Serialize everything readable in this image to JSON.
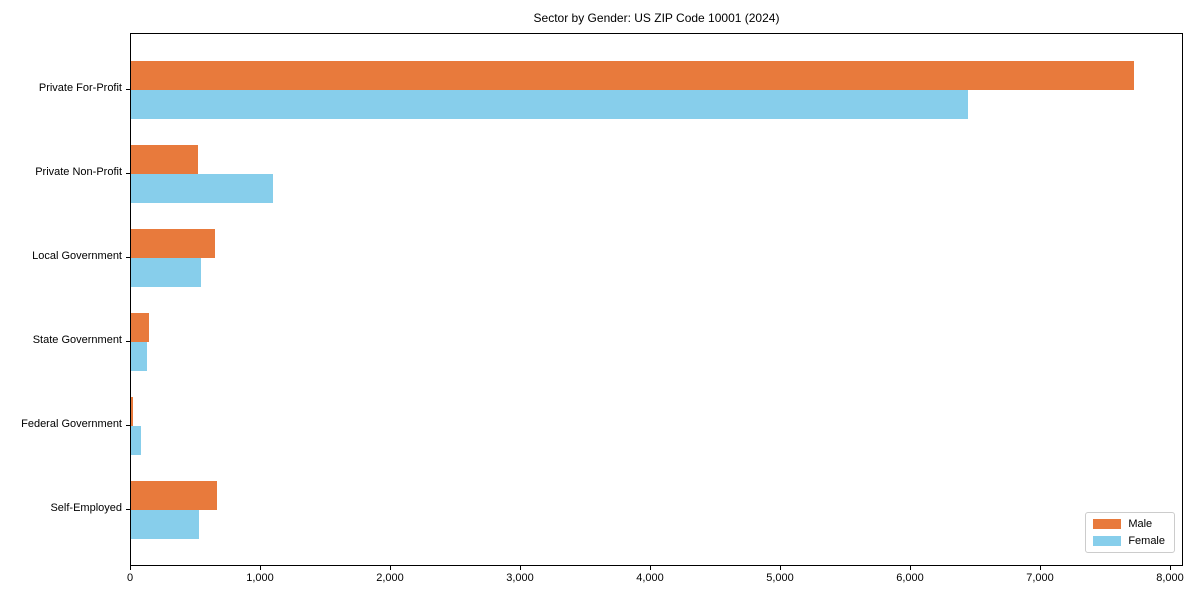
{
  "chart_data": {
    "type": "bar",
    "orientation": "horizontal",
    "title": "Sector by Gender: US ZIP Code 10001 (2024)",
    "categories": [
      "Private For-Profit",
      "Private Non-Profit",
      "Local Government",
      "State Government",
      "Federal Government",
      "Self-Employed"
    ],
    "series": [
      {
        "name": "Male",
        "color": "#e87a3c",
        "values": [
          7715,
          515,
          645,
          135,
          15,
          660
        ]
      },
      {
        "name": "Female",
        "color": "#87ceeb",
        "values": [
          6435,
          1090,
          540,
          120,
          75,
          525
        ]
      }
    ],
    "xlabel": "",
    "ylabel": "",
    "xlim": [
      0,
      8100
    ],
    "xticks": [
      0,
      1000,
      2000,
      3000,
      4000,
      5000,
      6000,
      7000,
      8000
    ],
    "xtick_labels": [
      "0",
      "1,000",
      "2,000",
      "3,000",
      "4,000",
      "5,000",
      "6,000",
      "7,000",
      "8,000"
    ],
    "grid": false,
    "legend_position": "lower right",
    "axis_color": "#000000",
    "background_color": "#ffffff"
  }
}
